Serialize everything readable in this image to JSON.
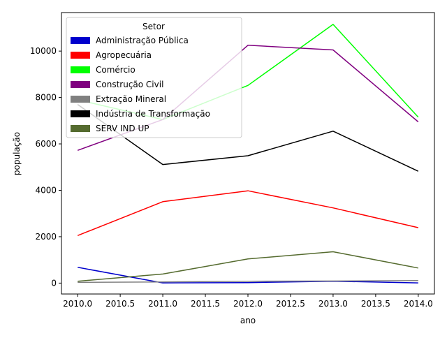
{
  "chart_data": {
    "type": "line",
    "title": "",
    "xlabel": "ano",
    "ylabel": "população",
    "x": [
      2010,
      2011,
      2012,
      2013,
      2014
    ],
    "xlim": [
      2009.81,
      2014.19
    ],
    "ylim": [
      -470,
      11660
    ],
    "xticks": [
      "2010.0",
      "2010.5",
      "2011.0",
      "2011.5",
      "2012.0",
      "2012.5",
      "2013.0",
      "2013.5",
      "2014.0"
    ],
    "yticks": [
      "0",
      "2000",
      "4000",
      "6000",
      "8000",
      "10000"
    ],
    "legend": {
      "title": "Setor",
      "placement": "upper-left",
      "entries": [
        " Administração Pública",
        " Agropecuária",
        " Comércio",
        " Construção Civil",
        " Extração Mineral",
        " Indústria de Transformação",
        " SERV IND UP"
      ]
    },
    "series": [
      {
        "name": " Administração Pública",
        "color": "#0000cd",
        "values": [
          680,
          10,
          20,
          80,
          10
        ]
      },
      {
        "name": " Agropecuária",
        "color": "#ff0000",
        "values": [
          2050,
          3510,
          3980,
          3240,
          2390
        ]
      },
      {
        "name": " Comércio",
        "color": "#00ff00",
        "values": [
          7900,
          7050,
          8520,
          11150,
          7150
        ]
      },
      {
        "name": " Construção Civil",
        "color": "#800080",
        "values": [
          5720,
          7050,
          10250,
          10050,
          6950
        ]
      },
      {
        "name": " Extração Mineral",
        "color": "#808080",
        "values": [
          30,
          50,
          80,
          90,
          110
        ]
      },
      {
        "name": " Indústria de Transformação",
        "color": "#000000",
        "values": [
          7700,
          5110,
          5490,
          6550,
          4820
        ]
      },
      {
        "name": " SERV IND UP",
        "color": "#556b2f",
        "values": [
          80,
          390,
          1040,
          1350,
          650
        ]
      }
    ]
  }
}
